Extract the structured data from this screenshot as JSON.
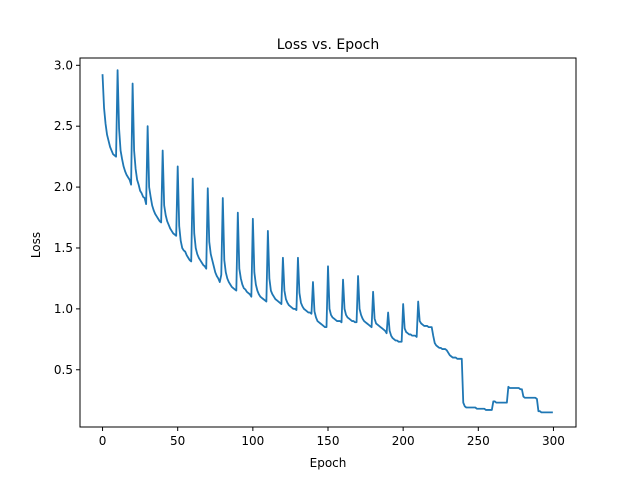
{
  "chart_data": {
    "type": "line",
    "title": "Loss vs. Epoch",
    "xlabel": "Epoch",
    "ylabel": "Loss",
    "xlim": [
      -15,
      315
    ],
    "ylim": [
      0.03,
      3.06
    ],
    "xticks": [
      0,
      50,
      100,
      150,
      200,
      250,
      300
    ],
    "yticks": [
      0.5,
      1.0,
      1.5,
      2.0,
      2.5,
      3.0
    ],
    "xtick_labels": [
      "0",
      "50",
      "100",
      "150",
      "200",
      "250",
      "300"
    ],
    "ytick_labels": [
      "0.5",
      "1.0",
      "1.5",
      "2.0",
      "2.5",
      "3.0"
    ],
    "grid": false,
    "legend": "none",
    "line_color": "#1f77b4",
    "series": [
      {
        "x": [
          0,
          1,
          2,
          3,
          4,
          5,
          6,
          7,
          8,
          9,
          10,
          11,
          12,
          13,
          14,
          15,
          16,
          17,
          18,
          19,
          20,
          21,
          22,
          23,
          24,
          25,
          26,
          27,
          28,
          29,
          30,
          31,
          32,
          33,
          34,
          35,
          36,
          37,
          38,
          39,
          40,
          41,
          42,
          43,
          44,
          45,
          46,
          47,
          48,
          49,
          50,
          51,
          52,
          53,
          54,
          55,
          56,
          57,
          58,
          59,
          60,
          61,
          62,
          63,
          64,
          65,
          66,
          67,
          68,
          69,
          70,
          71,
          72,
          73,
          74,
          75,
          76,
          77,
          78,
          79,
          80,
          81,
          82,
          83,
          84,
          85,
          86,
          87,
          88,
          89,
          90,
          91,
          92,
          93,
          94,
          95,
          96,
          97,
          98,
          99,
          100,
          101,
          102,
          103,
          104,
          105,
          106,
          107,
          108,
          109,
          110,
          111,
          112,
          113,
          114,
          115,
          116,
          117,
          118,
          119,
          120,
          121,
          122,
          123,
          124,
          125,
          126,
          127,
          128,
          129,
          130,
          131,
          132,
          133,
          134,
          135,
          136,
          137,
          138,
          139,
          140,
          141,
          142,
          143,
          144,
          145,
          146,
          147,
          148,
          149,
          150,
          151,
          152,
          153,
          154,
          155,
          156,
          157,
          158,
          159,
          160,
          161,
          162,
          163,
          164,
          165,
          166,
          167,
          168,
          169,
          170,
          171,
          172,
          173,
          174,
          175,
          176,
          177,
          178,
          179,
          180,
          181,
          182,
          183,
          184,
          185,
          186,
          187,
          188,
          189,
          190,
          191,
          192,
          193,
          194,
          195,
          196,
          197,
          198,
          199,
          200,
          201,
          202,
          203,
          204,
          205,
          206,
          207,
          208,
          209,
          210,
          211,
          212,
          213,
          214,
          215,
          216,
          217,
          218,
          219,
          220,
          221,
          222,
          223,
          224,
          225,
          226,
          227,
          228,
          229,
          230,
          231,
          232,
          233,
          234,
          235,
          236,
          237,
          238,
          239,
          240,
          241,
          242,
          243,
          244,
          245,
          246,
          247,
          248,
          249,
          250,
          251,
          252,
          253,
          254,
          255,
          256,
          257,
          258,
          259,
          260,
          261,
          262,
          263,
          264,
          265,
          266,
          267,
          268,
          269,
          270,
          271,
          272,
          273,
          274,
          275,
          276,
          277,
          278,
          279,
          280,
          281,
          282,
          283,
          284,
          285,
          286,
          287,
          288,
          289,
          290,
          291,
          292,
          293,
          294,
          295,
          296,
          297,
          298,
          299
        ],
        "y": [
          2.92,
          2.65,
          2.52,
          2.43,
          2.38,
          2.33,
          2.3,
          2.27,
          2.26,
          2.25,
          2.96,
          2.48,
          2.3,
          2.23,
          2.17,
          2.13,
          2.1,
          2.08,
          2.06,
          2.02,
          2.85,
          2.3,
          2.15,
          2.06,
          2.02,
          1.97,
          1.95,
          1.92,
          1.91,
          1.86,
          2.5,
          2.0,
          1.92,
          1.85,
          1.81,
          1.78,
          1.76,
          1.74,
          1.72,
          1.71,
          2.3,
          1.85,
          1.77,
          1.72,
          1.69,
          1.66,
          1.64,
          1.62,
          1.61,
          1.6,
          2.17,
          1.68,
          1.56,
          1.5,
          1.48,
          1.47,
          1.44,
          1.42,
          1.4,
          1.39,
          2.07,
          1.62,
          1.5,
          1.45,
          1.42,
          1.4,
          1.38,
          1.36,
          1.35,
          1.33,
          1.99,
          1.55,
          1.45,
          1.4,
          1.35,
          1.3,
          1.27,
          1.25,
          1.22,
          1.28,
          1.91,
          1.4,
          1.3,
          1.25,
          1.22,
          1.2,
          1.18,
          1.17,
          1.16,
          1.15,
          1.79,
          1.33,
          1.25,
          1.2,
          1.17,
          1.16,
          1.14,
          1.13,
          1.12,
          1.1,
          1.74,
          1.3,
          1.2,
          1.15,
          1.12,
          1.1,
          1.09,
          1.08,
          1.07,
          1.06,
          1.64,
          1.25,
          1.15,
          1.12,
          1.1,
          1.08,
          1.07,
          1.06,
          1.05,
          1.04,
          1.42,
          1.15,
          1.08,
          1.05,
          1.03,
          1.02,
          1.01,
          1.0,
          1.0,
          0.99,
          1.42,
          1.13,
          1.05,
          1.02,
          1.0,
          0.99,
          0.98,
          0.97,
          0.97,
          0.96,
          1.22,
          0.98,
          0.93,
          0.9,
          0.89,
          0.88,
          0.87,
          0.86,
          0.85,
          0.85,
          1.35,
          1.0,
          0.95,
          0.93,
          0.92,
          0.91,
          0.9,
          0.9,
          0.9,
          0.89,
          1.24,
          1.0,
          0.95,
          0.93,
          0.92,
          0.91,
          0.9,
          0.9,
          0.89,
          0.89,
          1.27,
          1.0,
          0.95,
          0.92,
          0.9,
          0.89,
          0.88,
          0.87,
          0.86,
          0.85,
          1.14,
          0.92,
          0.88,
          0.87,
          0.86,
          0.85,
          0.84,
          0.83,
          0.82,
          0.8,
          0.97,
          0.82,
          0.78,
          0.76,
          0.75,
          0.74,
          0.74,
          0.73,
          0.73,
          0.73,
          1.04,
          0.84,
          0.81,
          0.8,
          0.79,
          0.79,
          0.78,
          0.78,
          0.78,
          0.77,
          1.06,
          0.9,
          0.88,
          0.87,
          0.86,
          0.86,
          0.86,
          0.85,
          0.85,
          0.85,
          0.78,
          0.72,
          0.7,
          0.69,
          0.68,
          0.68,
          0.67,
          0.67,
          0.67,
          0.66,
          0.64,
          0.62,
          0.61,
          0.6,
          0.6,
          0.6,
          0.59,
          0.59,
          0.59,
          0.59,
          0.23,
          0.2,
          0.19,
          0.19,
          0.19,
          0.19,
          0.19,
          0.19,
          0.19,
          0.18,
          0.18,
          0.18,
          0.18,
          0.18,
          0.18,
          0.17,
          0.17,
          0.17,
          0.17,
          0.17,
          0.24,
          0.24,
          0.23,
          0.23,
          0.23,
          0.23,
          0.23,
          0.23,
          0.23,
          0.23,
          0.36,
          0.35,
          0.35,
          0.35,
          0.35,
          0.35,
          0.35,
          0.35,
          0.34,
          0.34,
          0.28,
          0.27,
          0.27,
          0.27,
          0.27,
          0.27,
          0.27,
          0.27,
          0.27,
          0.26,
          0.16,
          0.16,
          0.15,
          0.15,
          0.15,
          0.15,
          0.15,
          0.15,
          0.15,
          0.15
        ]
      }
    ]
  }
}
